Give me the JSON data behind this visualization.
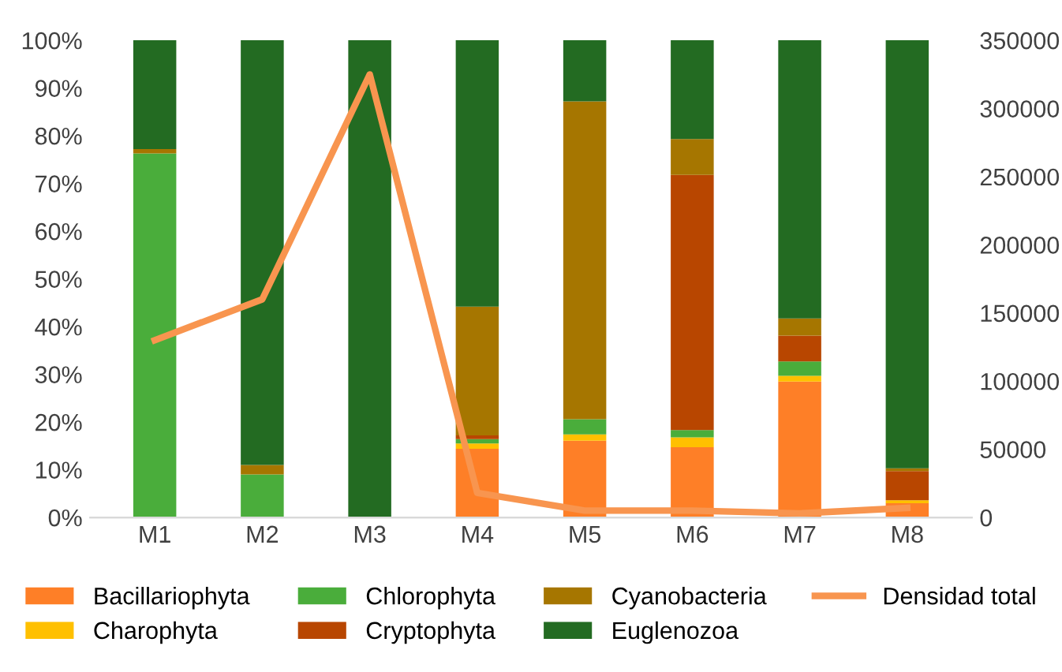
{
  "chart_data": {
    "type": "bar",
    "stacked": true,
    "categories": [
      "M1",
      "M2",
      "M3",
      "M4",
      "M5",
      "M6",
      "M7",
      "M8"
    ],
    "series": [
      {
        "name": "Bacillariophyta",
        "color": "#fe7f27",
        "values": [
          0,
          0,
          0,
          14.4,
          16.1,
          14.7,
          28.5,
          3.0
        ]
      },
      {
        "name": "Charophyta",
        "color": "#ffc000",
        "values": [
          0,
          0,
          0,
          1.1,
          1.3,
          2.1,
          1.2,
          0.6
        ]
      },
      {
        "name": "Chlorophyta",
        "color": "#4aad3b",
        "values": [
          76.3,
          9,
          0,
          0.9,
          3.2,
          1.5,
          3.0,
          0
        ]
      },
      {
        "name": "Cryptophyta",
        "color": "#b84600",
        "values": [
          0,
          0,
          0,
          0.8,
          0,
          53.5,
          5.4,
          6.1
        ]
      },
      {
        "name": "Cyanobacteria",
        "color": "#a67600",
        "values": [
          0.9,
          2,
          0,
          27.0,
          66.6,
          7.5,
          3.6,
          0.6
        ]
      },
      {
        "name": "Euglenozoa",
        "color": "#236b22",
        "values": [
          22.8,
          89,
          100,
          55.8,
          12.8,
          20.7,
          58.3,
          89.7
        ]
      },
      {
        "name": "Densidad total",
        "type": "line",
        "axis": "y2",
        "color": "#f8954f",
        "values": [
          130000,
          160000,
          325000,
          18000,
          5000,
          5000,
          3000,
          7000
        ]
      }
    ],
    "ylim": [
      0,
      100
    ],
    "yticks": [
      {
        "value": 0,
        "label": "0%"
      },
      {
        "value": 10,
        "label": "10%"
      },
      {
        "value": 20,
        "label": "20%"
      },
      {
        "value": 30,
        "label": "30%"
      },
      {
        "value": 40,
        "label": "40%"
      },
      {
        "value": 50,
        "label": "50%"
      },
      {
        "value": 60,
        "label": "60%"
      },
      {
        "value": 70,
        "label": "70%"
      },
      {
        "value": 80,
        "label": "80%"
      },
      {
        "value": 90,
        "label": "90%"
      },
      {
        "value": 100,
        "label": "100%"
      }
    ],
    "y2lim": [
      0,
      350000
    ],
    "y2ticks": [
      0,
      50000,
      100000,
      150000,
      200000,
      250000,
      300000,
      350000
    ],
    "legend": "bottom",
    "grid": false,
    "marker": "none",
    "line_style": "solid"
  }
}
